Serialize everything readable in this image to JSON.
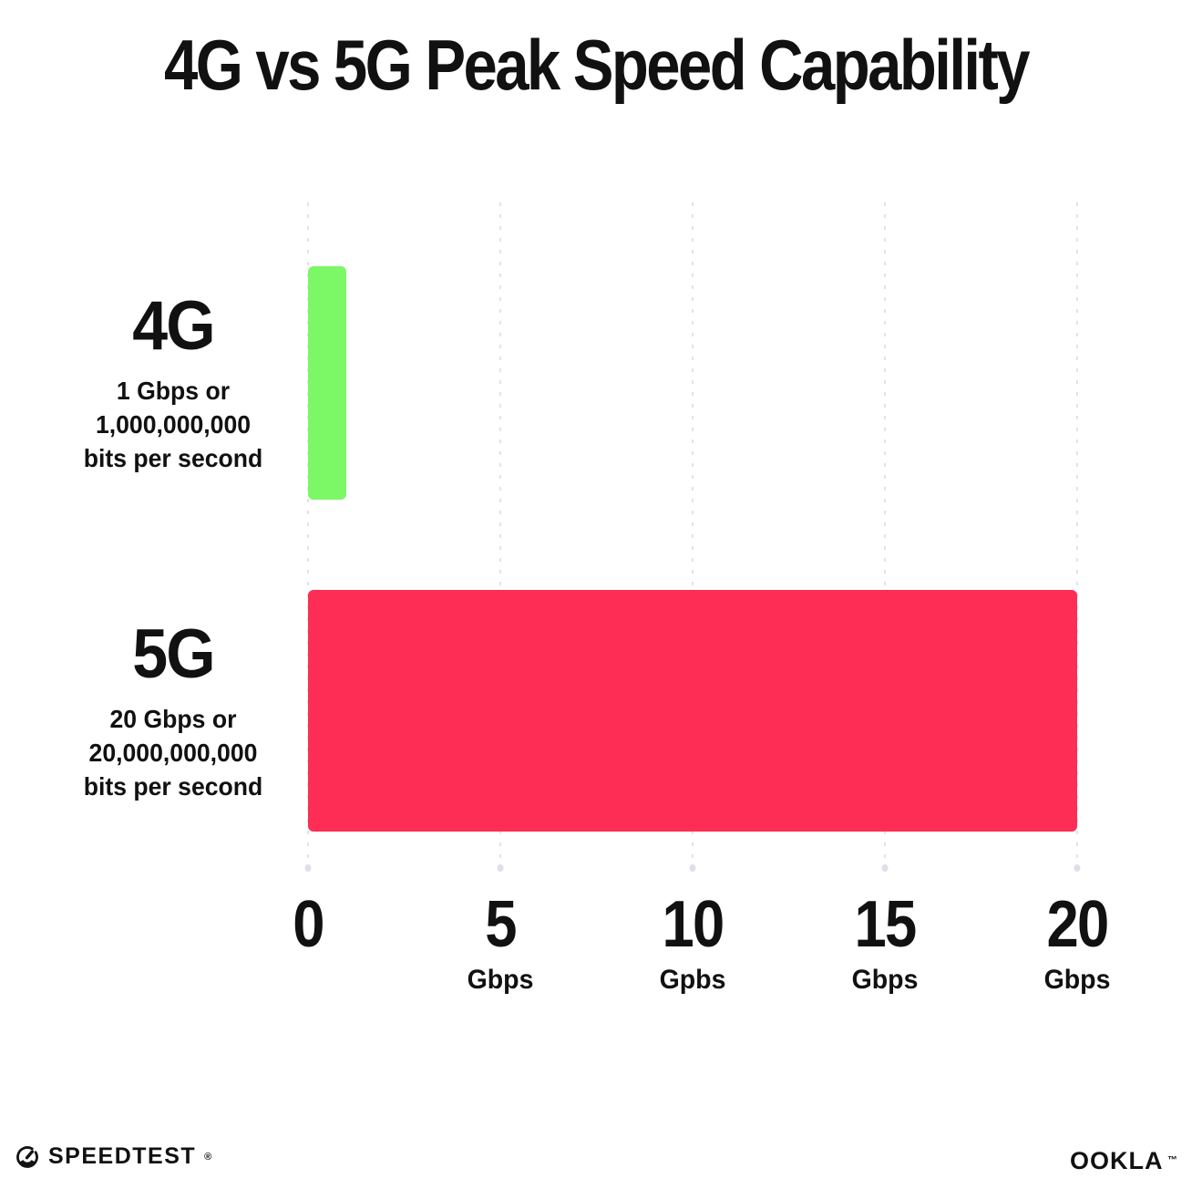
{
  "title": "4G vs 5G Peak Speed Capability",
  "rows": [
    {
      "label": "4G",
      "desc_lines": [
        "1 Gbps or",
        "1,000,000,000",
        "bits per second"
      ],
      "value": 1,
      "color": "#7CF765"
    },
    {
      "label": "5G",
      "desc_lines": [
        "20 Gbps or",
        "20,000,000,000",
        "bits per second"
      ],
      "value": 20,
      "color": "#FD2D56"
    }
  ],
  "x_axis": {
    "max": 20,
    "ticks": [
      {
        "value": 0,
        "label": "0",
        "unit": ""
      },
      {
        "value": 5,
        "label": "5",
        "unit": "Gbps"
      },
      {
        "value": 10,
        "label": "10",
        "unit": "Gpbs"
      },
      {
        "value": 15,
        "label": "15",
        "unit": "Gbps"
      },
      {
        "value": 20,
        "label": "20",
        "unit": "Gbps"
      }
    ]
  },
  "footer": {
    "speedtest_label": "SPEEDTEST",
    "speedtest_mark": "®",
    "ookla_label": "OOKLA",
    "ookla_mark": "™"
  },
  "colors": {
    "bar_4g": "#7CF765",
    "bar_5g": "#FD2D56",
    "gridline": "#E2E2EE",
    "text": "#111111",
    "background": "#FFFFFF"
  },
  "chart_data": {
    "type": "bar",
    "orientation": "horizontal",
    "title": "4G vs 5G Peak Speed Capability",
    "categories": [
      "4G",
      "5G"
    ],
    "values": [
      1,
      20
    ],
    "value_unit": "Gbps",
    "annotations": [
      "4G: 1 Gbps or 1,000,000,000 bits per second",
      "5G: 20 Gbps or 20,000,000,000 bits per second"
    ],
    "xlim": [
      0,
      20
    ],
    "x_tick_labels": [
      "0",
      "5 Gbps",
      "10 Gpbs",
      "15 Gbps",
      "20 Gbps"
    ],
    "grid": "vertical-dotted",
    "legend": "none",
    "bar_colors": [
      "#7CF765",
      "#FD2D56"
    ]
  }
}
